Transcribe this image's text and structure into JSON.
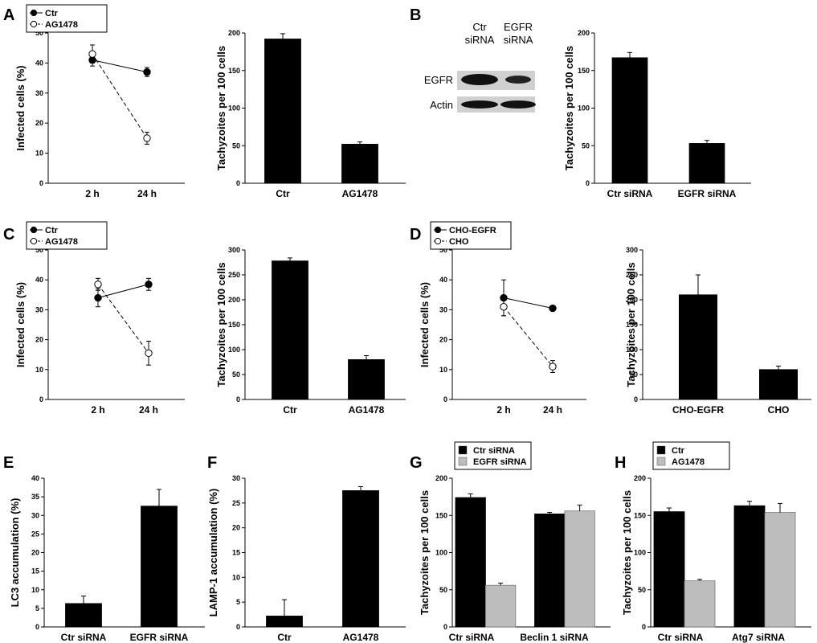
{
  "figure": {
    "panels": [
      "A",
      "B",
      "C",
      "D",
      "E",
      "F",
      "G",
      "H"
    ]
  },
  "blot": {
    "lane_labels": [
      [
        "Ctr",
        "siRNA"
      ],
      [
        "EGFR",
        "siRNA"
      ]
    ],
    "row_labels": [
      "EGFR",
      "Actin"
    ]
  },
  "chart_data": [
    {
      "id": "A1",
      "type": "line",
      "x": [
        "2 h",
        "24 h"
      ],
      "ylabel": "Infected cells (%)",
      "ylim": [
        0,
        50
      ],
      "yticks": [
        0,
        10,
        20,
        30,
        40,
        50
      ],
      "series": [
        {
          "name": "Ctr",
          "values": [
            41,
            37
          ],
          "errors": [
            2,
            1.5
          ],
          "marker": "filled",
          "dashed": false
        },
        {
          "name": "AG1478",
          "values": [
            43,
            15
          ],
          "errors": [
            3,
            2
          ],
          "marker": "open",
          "dashed": true
        }
      ],
      "legend": "top-left"
    },
    {
      "id": "A2",
      "type": "bar",
      "categories": [
        "Ctr",
        "AG1478"
      ],
      "ylabel": "Tachyzoites per 100 cells",
      "ylim": [
        0,
        200
      ],
      "yticks": [
        0,
        50,
        100,
        150,
        200
      ],
      "series": [
        {
          "values": [
            192,
            52
          ],
          "errors": [
            7,
            3
          ],
          "color": "#000000"
        }
      ]
    },
    {
      "id": "B2",
      "type": "bar",
      "categories": [
        "Ctr siRNA",
        "EGFR siRNA"
      ],
      "ylabel": "Tachyzoites per 100 cells",
      "ylim": [
        0,
        200
      ],
      "yticks": [
        0,
        50,
        100,
        150,
        200
      ],
      "series": [
        {
          "values": [
            167,
            53
          ],
          "errors": [
            7,
            4
          ],
          "color": "#000000"
        }
      ]
    },
    {
      "id": "C1",
      "type": "line",
      "x": [
        "2 h",
        "24 h"
      ],
      "ylabel": "Infected cells (%)",
      "ylim": [
        0,
        50
      ],
      "yticks": [
        0,
        10,
        20,
        30,
        40,
        50
      ],
      "series": [
        {
          "name": "Ctr",
          "values": [
            34,
            38.5
          ],
          "errors": [
            3,
            2
          ],
          "marker": "filled",
          "dashed": false
        },
        {
          "name": "AG1478",
          "values": [
            38.5,
            15.5
          ],
          "errors": [
            2,
            4
          ],
          "marker": "open",
          "dashed": true
        }
      ],
      "legend": "top-left"
    },
    {
      "id": "C2",
      "type": "bar",
      "categories": [
        "Ctr",
        "AG1478"
      ],
      "ylabel": "Tachyzoites per 100 cells",
      "ylim": [
        0,
        300
      ],
      "yticks": [
        0,
        50,
        100,
        150,
        200,
        250,
        300
      ],
      "series": [
        {
          "values": [
            278,
            80
          ],
          "errors": [
            6,
            8
          ],
          "color": "#000000"
        }
      ]
    },
    {
      "id": "D1",
      "type": "line",
      "x": [
        "2 h",
        "24 h"
      ],
      "ylabel": "Infected cells (%)",
      "ylim": [
        0,
        50
      ],
      "yticks": [
        0,
        10,
        20,
        30,
        40,
        50
      ],
      "series": [
        {
          "name": "CHO-EGFR",
          "values": [
            34,
            30.5
          ],
          "errors": [
            6,
            0
          ],
          "marker": "filled",
          "dashed": false
        },
        {
          "name": "CHO",
          "values": [
            31,
            11
          ],
          "errors": [
            3,
            2
          ],
          "marker": "open",
          "dashed": true
        }
      ],
      "legend": "top-left"
    },
    {
      "id": "D2",
      "type": "bar",
      "categories": [
        "CHO-EGFR",
        "CHO"
      ],
      "ylabel": "Tachyzoites per 100 cells",
      "ylim": [
        0,
        300
      ],
      "yticks": [
        0,
        50,
        100,
        150,
        200,
        250,
        300
      ],
      "series": [
        {
          "values": [
            210,
            60
          ],
          "errors": [
            40,
            7
          ],
          "color": "#000000"
        }
      ]
    },
    {
      "id": "E",
      "type": "bar",
      "categories": [
        "Ctr siRNA",
        "EGFR siRNA"
      ],
      "ylabel": "LC3 accumulation (%)",
      "ylim": [
        0,
        40
      ],
      "yticks": [
        0,
        5,
        10,
        15,
        20,
        25,
        30,
        35,
        40
      ],
      "series": [
        {
          "values": [
            6.3,
            32.5
          ],
          "errors": [
            2,
            4.5
          ],
          "color": "#000000"
        }
      ]
    },
    {
      "id": "F",
      "type": "bar",
      "categories": [
        "Ctr",
        "AG1478"
      ],
      "ylabel": "LAMP-1 accumulation (%)",
      "ylim": [
        0,
        30
      ],
      "yticks": [
        0,
        5,
        10,
        15,
        20,
        25,
        30
      ],
      "series": [
        {
          "values": [
            2.2,
            27.5
          ],
          "errors": [
            3.3,
            0.8
          ],
          "color": "#000000"
        }
      ]
    },
    {
      "id": "G",
      "type": "bar",
      "categories": [
        "Ctr siRNA",
        "Beclin 1 siRNA"
      ],
      "ylabel": "Tachyzoites per 100 cells",
      "ylim": [
        0,
        200
      ],
      "yticks": [
        0,
        50,
        100,
        150,
        200
      ],
      "series": [
        {
          "name": "Ctr siRNA",
          "values": [
            174,
            152
          ],
          "errors": [
            5,
            2
          ],
          "color": "#000000"
        },
        {
          "name": "EGFR siRNA",
          "values": [
            56,
            156
          ],
          "errors": [
            3,
            8
          ],
          "color": "#bdbdbd"
        }
      ],
      "legend": "top-left"
    },
    {
      "id": "H",
      "type": "bar",
      "categories": [
        "Ctr siRNA",
        "Atg7 siRNA"
      ],
      "ylabel": "Tachyzoites per 100 cells",
      "ylim": [
        0,
        200
      ],
      "yticks": [
        0,
        50,
        100,
        150,
        200
      ],
      "series": [
        {
          "name": "Ctr",
          "values": [
            155,
            163
          ],
          "errors": [
            5,
            6
          ],
          "color": "#000000"
        },
        {
          "name": "AG1478",
          "values": [
            62,
            154
          ],
          "errors": [
            2,
            12
          ],
          "color": "#bdbdbd"
        }
      ],
      "legend": "top-left"
    }
  ]
}
